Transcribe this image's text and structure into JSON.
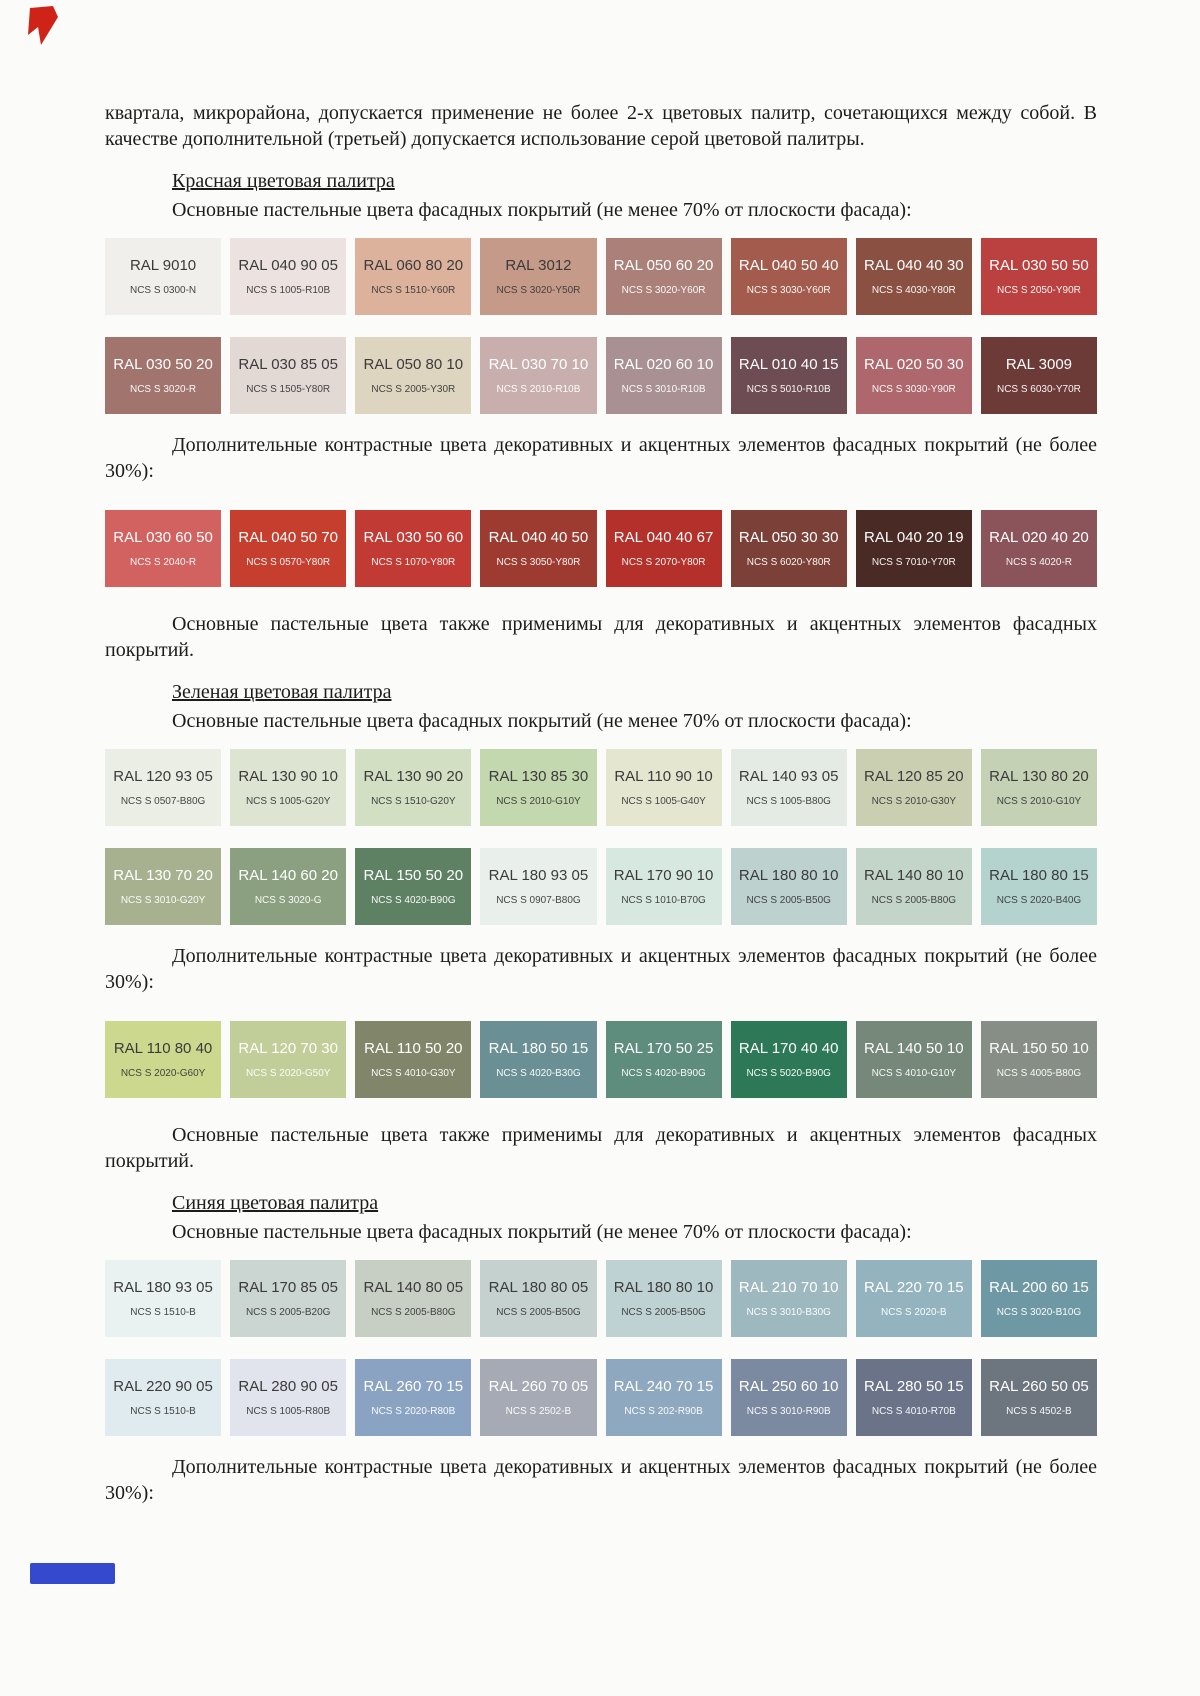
{
  "decorations": {
    "red_mark_color": "#cf2318",
    "blue_bar_color": "#3549cf"
  },
  "document": {
    "intro": "квартала, микрорайона, допускается применение не более 2-х цветовых палитр, сочетающихся между собой. В качестве дополнительной (третьей) допускается использование серой цветовой палитры.",
    "sections": [
      {
        "id": "red",
        "title": "Красная цветовая палитра",
        "main_label": "Основные пастельные цвета фасадных покрытий (не менее 70% от плоскости фасада):",
        "main_rows": [
          [
            {
              "ral": "RAL 9010",
              "ncs": "NCS S 0300-N",
              "bg": "#f0efeb",
              "tc": "#3b3b3b"
            },
            {
              "ral": "RAL 040 90 05",
              "ncs": "NCS S 1005-R10B",
              "bg": "#ece2df",
              "tc": "#3b3b3b"
            },
            {
              "ral": "RAL 060 80 20",
              "ncs": "NCS S 1510-Y60R",
              "bg": "#dcb29c",
              "tc": "#3b3b3b"
            },
            {
              "ral": "RAL 3012",
              "ncs": "NCS S 3020-Y50R",
              "bg": "#c69a89",
              "tc": "#3b3b3b"
            },
            {
              "ral": "RAL 050 60 20",
              "ncs": "NCS S 3020-Y60R",
              "bg": "#aa8078",
              "tc": "#ffffff"
            },
            {
              "ral": "RAL 040 50 40",
              "ncs": "NCS S 3030-Y60R",
              "bg": "#a25b4c",
              "tc": "#ffffff"
            },
            {
              "ral": "RAL 040 40 30",
              "ncs": "NCS S 4030-Y80R",
              "bg": "#8a5143",
              "tc": "#ffffff"
            },
            {
              "ral": "RAL 030 50 50",
              "ncs": "NCS S 2050-Y90R",
              "bg": "#bb4140",
              "tc": "#ffffff"
            }
          ],
          [
            {
              "ral": "RAL 030 50 20",
              "ncs": "NCS S 3020-R",
              "bg": "#a1746e",
              "tc": "#ffffff"
            },
            {
              "ral": "RAL 030 85 05",
              "ncs": "NCS S 1505-Y80R",
              "bg": "#e2d9d5",
              "tc": "#3b3b3b"
            },
            {
              "ral": "RAL 050 80 10",
              "ncs": "NCS S 2005-Y30R",
              "bg": "#ded5c0",
              "tc": "#3b3b3b"
            },
            {
              "ral": "RAL 030 70 10",
              "ncs": "NCS S 2010-R10B",
              "bg": "#c9aeae",
              "tc": "#ffffff"
            },
            {
              "ral": "RAL 020 60 10",
              "ncs": "NCS S 3010-R10B",
              "bg": "#a89093",
              "tc": "#ffffff"
            },
            {
              "ral": "RAL 010 40 15",
              "ncs": "NCS S 5010-R10B",
              "bg": "#6d4c53",
              "tc": "#ffffff"
            },
            {
              "ral": "RAL 020 50 30",
              "ncs": "NCS S 3030-Y90R",
              "bg": "#ad676d",
              "tc": "#ffffff"
            },
            {
              "ral": "RAL 3009",
              "ncs": "NCS S 6030-Y70R",
              "bg": "#6c3a37",
              "tc": "#ffffff"
            }
          ]
        ],
        "contrast_label": "Дополнительные контрастные цвета декоративных и акцентных элементов фасадных покрытий (не более 30%):",
        "contrast_row": [
          {
            "ral": "RAL 030 60 50",
            "ncs": "NCS S 2040-R",
            "bg": "#d26260",
            "tc": "#ffffff"
          },
          {
            "ral": "RAL 040 50 70",
            "ncs": "NCS S 0570-Y80R",
            "bg": "#c63f2e",
            "tc": "#ffffff"
          },
          {
            "ral": "RAL 030 50 60",
            "ncs": "NCS S 1070-Y80R",
            "bg": "#c23a34",
            "tc": "#ffffff"
          },
          {
            "ral": "RAL 040 40 50",
            "ncs": "NCS S 3050-Y80R",
            "bg": "#9e3b31",
            "tc": "#ffffff"
          },
          {
            "ral": "RAL 040 40 67",
            "ncs": "NCS S 2070-Y80R",
            "bg": "#b4302a",
            "tc": "#ffffff"
          },
          {
            "ral": "RAL 050 30 30",
            "ncs": "NCS S 6020-Y80R",
            "bg": "#7b4037",
            "tc": "#ffffff"
          },
          {
            "ral": "RAL 040 20 19",
            "ncs": "NCS S 7010-Y70R",
            "bg": "#492a25",
            "tc": "#ffffff"
          },
          {
            "ral": "RAL 020 40 20",
            "ncs": "NCS S 4020-R",
            "bg": "#8b535a",
            "tc": "#ffffff"
          }
        ],
        "note": "Основные пастельные цвета также применимы для декоративных и акцентных элементов фасадных покрытий."
      },
      {
        "id": "green",
        "title": "Зеленая цветовая палитра",
        "main_label": "Основные пастельные цвета фасадных покрытий (не менее 70% от плоскости фасада):",
        "main_rows": [
          [
            {
              "ral": "RAL 120 93 05",
              "ncs": "NCS S 0507-B80G",
              "bg": "#ebeee5",
              "tc": "#3b3b3b"
            },
            {
              "ral": "RAL 130 90 10",
              "ncs": "NCS S 1005-G20Y",
              "bg": "#dee4d2",
              "tc": "#3b3b3b"
            },
            {
              "ral": "RAL 130 90 20",
              "ncs": "NCS S 1510-G20Y",
              "bg": "#d2dfc3",
              "tc": "#3b3b3b"
            },
            {
              "ral": "RAL 130 85 30",
              "ncs": "NCS S 2010-G10Y",
              "bg": "#c3d8ae",
              "tc": "#3b3b3b"
            },
            {
              "ral": "RAL 110 90 10",
              "ncs": "NCS S 1005-G40Y",
              "bg": "#e4e6d0",
              "tc": "#3b3b3b"
            },
            {
              "ral": "RAL 140 93 05",
              "ncs": "NCS S 1005-B80G",
              "bg": "#e4ebe4",
              "tc": "#3b3b3b"
            },
            {
              "ral": "RAL 120 85 20",
              "ncs": "NCS S 2010-G30Y",
              "bg": "#cbcfb2",
              "tc": "#3b3b3b"
            },
            {
              "ral": "RAL 130 80 20",
              "ncs": "NCS S 2010-G10Y",
              "bg": "#c4d1b4",
              "tc": "#3b3b3b"
            }
          ],
          [
            {
              "ral": "RAL 130 70 20",
              "ncs": "NCS S 3010-G20Y",
              "bg": "#a7b18f",
              "tc": "#ffffff"
            },
            {
              "ral": "RAL 140 60 20",
              "ncs": "NCS S 3020-G",
              "bg": "#8aa080",
              "tc": "#ffffff"
            },
            {
              "ral": "RAL 150 50 20",
              "ncs": "NCS S 4020-B90G",
              "bg": "#5e8164",
              "tc": "#ffffff"
            },
            {
              "ral": "RAL 180 93 05",
              "ncs": "NCS S 0907-B80G",
              "bg": "#e9f0ec",
              "tc": "#3b3b3b"
            },
            {
              "ral": "RAL 170 90 10",
              "ncs": "NCS S 1010-B70G",
              "bg": "#d7e8e1",
              "tc": "#3b3b3b"
            },
            {
              "ral": "RAL 180 80 10",
              "ncs": "NCS S 2005-B50G",
              "bg": "#bdd2cf",
              "tc": "#3b3b3b"
            },
            {
              "ral": "RAL 140 80 10",
              "ncs": "NCS S 2005-B80G",
              "bg": "#c3d4c9",
              "tc": "#3b3b3b"
            },
            {
              "ral": "RAL 180 80 15",
              "ncs": "NCS S 2020-B40G",
              "bg": "#b4d3cf",
              "tc": "#3b3b3b"
            }
          ]
        ],
        "contrast_label": "Дополнительные контрастные цвета декоративных и акцентных элементов фасадных покрытий (не более 30%):",
        "contrast_row": [
          {
            "ral": "RAL 110 80 40",
            "ncs": "NCS S 2020-G60Y",
            "bg": "#ccd88e",
            "tc": "#3b3b3b"
          },
          {
            "ral": "RAL 120 70 30",
            "ncs": "NCS S 2020-G50Y",
            "bg": "#c1ce99",
            "tc": "#ffffff"
          },
          {
            "ral": "RAL 110 50 20",
            "ncs": "NCS S 4010-G30Y",
            "bg": "#81866a",
            "tc": "#ffffff"
          },
          {
            "ral": "RAL 180 50 15",
            "ncs": "NCS S 4020-B30G",
            "bg": "#6a9095",
            "tc": "#ffffff"
          },
          {
            "ral": "RAL 170 50 25",
            "ncs": "NCS S 4020-B90G",
            "bg": "#5e8c7d",
            "tc": "#ffffff"
          },
          {
            "ral": "RAL 170 40 40",
            "ncs": "NCS S 5020-B90G",
            "bg": "#2d7957",
            "tc": "#ffffff"
          },
          {
            "ral": "RAL 140 50 10",
            "ncs": "NCS S 4010-G10Y",
            "bg": "#75887a",
            "tc": "#ffffff"
          },
          {
            "ral": "RAL 150 50 10",
            "ncs": "NCS S 4005-B80G",
            "bg": "#868e86",
            "tc": "#ffffff"
          }
        ],
        "note": "Основные пастельные цвета также применимы для декоративных и акцентных элементов фасадных покрытий."
      },
      {
        "id": "blue",
        "title": "Синяя цветовая палитра",
        "main_label": "Основные пастельные цвета фасадных покрытий (не менее 70% от плоскости фасада):",
        "main_rows": [
          [
            {
              "ral": "RAL 180 93 05",
              "ncs": "NCS S 1510-B",
              "bg": "#e9f1f1",
              "tc": "#3b3b3b"
            },
            {
              "ral": "RAL 170 85 05",
              "ncs": "NCS S 2005-B20G",
              "bg": "#cbd5d1",
              "tc": "#3b3b3b"
            },
            {
              "ral": "RAL 140 80 05",
              "ncs": "NCS S 2005-B80G",
              "bg": "#c7cec4",
              "tc": "#3b3b3b"
            },
            {
              "ral": "RAL 180 80 05",
              "ncs": "NCS S 2005-B50G",
              "bg": "#c5d1cf",
              "tc": "#3b3b3b"
            },
            {
              "ral": "RAL 180 80 10",
              "ncs": "NCS S 2005-B50G",
              "bg": "#bfd2d3",
              "tc": "#3b3b3b"
            },
            {
              "ral": "RAL 210 70 10",
              "ncs": "NCS S 3010-B30G",
              "bg": "#9eb8bf",
              "tc": "#ffffff"
            },
            {
              "ral": "RAL 220 70 15",
              "ncs": "NCS S 2020-B",
              "bg": "#93b4bf",
              "tc": "#ffffff"
            },
            {
              "ral": "RAL 200 60 15",
              "ncs": "NCS S 3020-B10G",
              "bg": "#6e99a4",
              "tc": "#ffffff"
            }
          ],
          [
            {
              "ral": "RAL 220 90 05",
              "ncs": "NCS S 1510-B",
              "bg": "#e0ebef",
              "tc": "#3b3b3b"
            },
            {
              "ral": "RAL 280 90 05",
              "ncs": "NCS S 1005-R80B",
              "bg": "#e1e3ed",
              "tc": "#3b3b3b"
            },
            {
              "ral": "RAL 260 70 15",
              "ncs": "NCS S 2020-R80B",
              "bg": "#8aa3c3",
              "tc": "#ffffff"
            },
            {
              "ral": "RAL 260 70 05",
              "ncs": "NCS S 2502-B",
              "bg": "#a6aab4",
              "tc": "#ffffff"
            },
            {
              "ral": "RAL 240 70 15",
              "ncs": "NCS S 202-R90B",
              "bg": "#8ea8c0",
              "tc": "#ffffff"
            },
            {
              "ral": "RAL 250 60 10",
              "ncs": "NCS S 3010-R90B",
              "bg": "#7b8aa0",
              "tc": "#ffffff"
            },
            {
              "ral": "RAL 280 50 15",
              "ncs": "NCS S 4010-R70B",
              "bg": "#6a7388",
              "tc": "#ffffff"
            },
            {
              "ral": "RAL 260 50 05",
              "ncs": "NCS S 4502-B",
              "bg": "#6d757f",
              "tc": "#ffffff"
            }
          ]
        ],
        "contrast_label": "Дополнительные контрастные цвета декоративных и акцентных элементов фасадных покрытий (не более 30%):",
        "contrast_row": null,
        "note": null
      }
    ]
  }
}
